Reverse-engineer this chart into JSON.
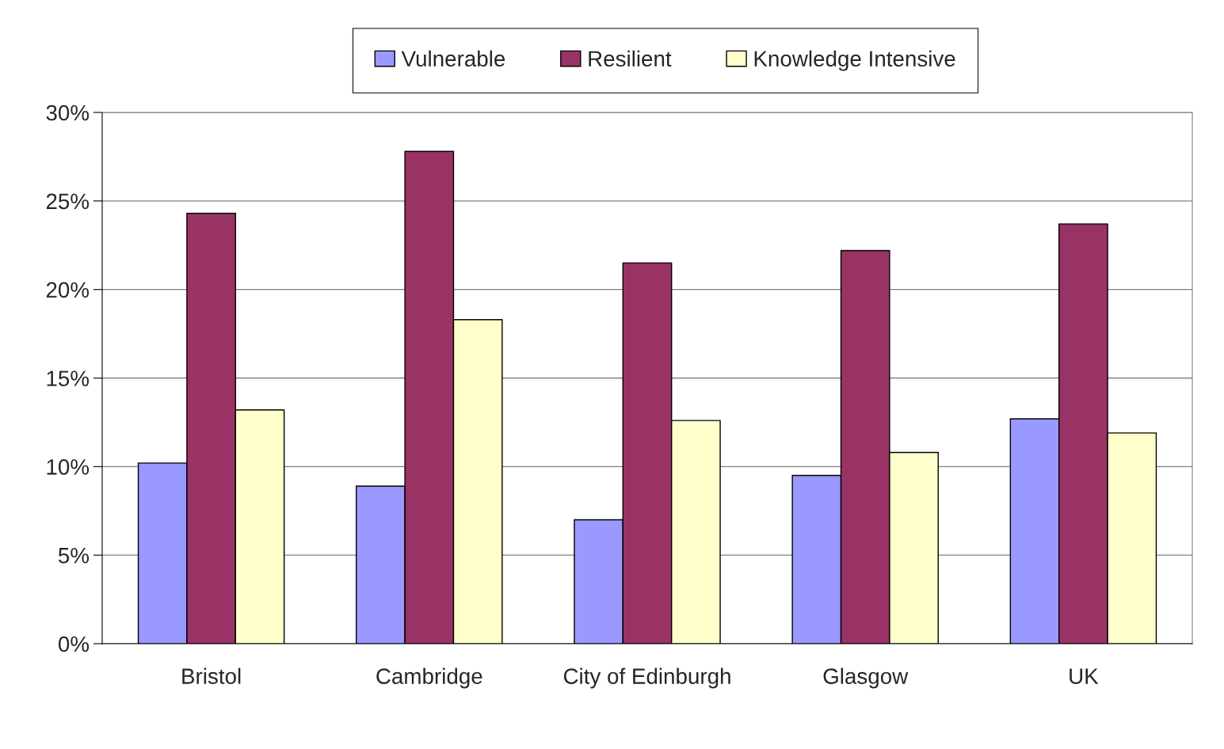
{
  "chart_data": {
    "type": "bar",
    "categories": [
      "Bristol",
      "Cambridge",
      "City of Edinburgh",
      "Glasgow",
      "UK"
    ],
    "series": [
      {
        "name": "Vulnerable",
        "color": "#9999ff",
        "values": [
          10.2,
          8.9,
          7.0,
          9.5,
          12.7
        ]
      },
      {
        "name": "Resilient",
        "color": "#993366",
        "values": [
          24.3,
          27.8,
          21.5,
          22.2,
          23.7
        ]
      },
      {
        "name": "Knowledge Intensive",
        "color": "#ffffcc",
        "values": [
          13.2,
          18.3,
          12.6,
          10.8,
          11.9
        ]
      }
    ],
    "ylim": [
      0,
      30
    ],
    "yticks": [
      {
        "value": 0,
        "label": "0%"
      },
      {
        "value": 5,
        "label": "5%"
      },
      {
        "value": 10,
        "label": "10%"
      },
      {
        "value": 15,
        "label": "15%"
      },
      {
        "value": 20,
        "label": "20%"
      },
      {
        "value": 25,
        "label": "25%"
      },
      {
        "value": 30,
        "label": "30%"
      }
    ],
    "grid": "y",
    "legend": "top"
  }
}
